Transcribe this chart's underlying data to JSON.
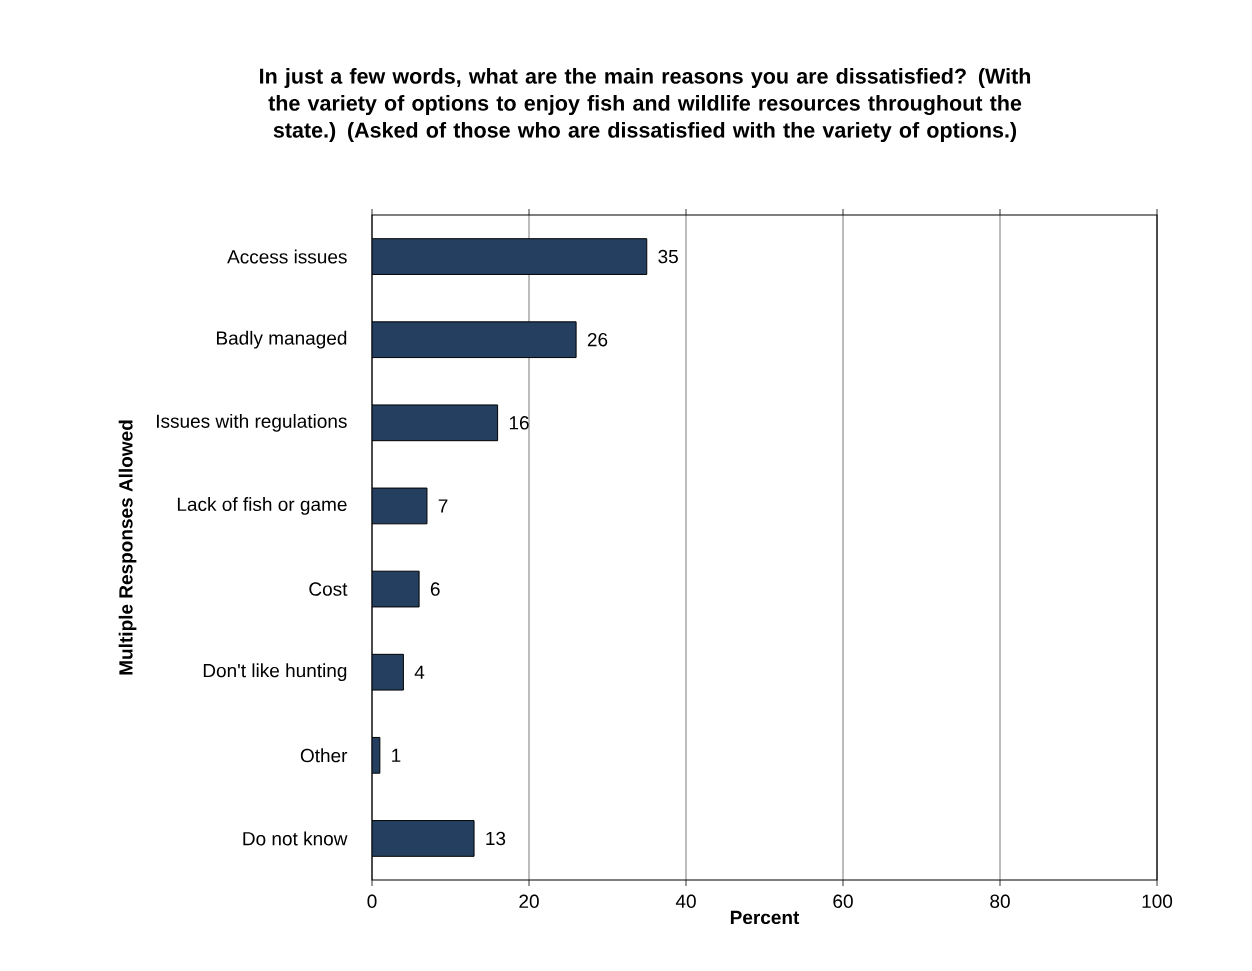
{
  "chart_data": {
    "type": "bar",
    "orientation": "horizontal",
    "title": "In just a few words, what are the main reasons you are dissatisfied? (With the variety of options to enjoy fish and wildlife resources throughout the state.) (Asked of those who are dissatisfied with the variety of options.)",
    "ylabel": "Multiple Responses Allowed",
    "xlabel": "Percent",
    "categories": [
      "Access issues",
      "Badly managed",
      "Issues with regulations",
      "Lack of fish or game",
      "Cost",
      "Don't like hunting",
      "Other",
      "Do not know"
    ],
    "values": [
      35,
      26,
      16,
      7,
      6,
      4,
      1,
      13
    ],
    "color": "#243f60",
    "data_labels": true,
    "grid": "x",
    "xlim": [
      0,
      100
    ],
    "xticks": [
      0,
      20,
      40,
      60,
      80,
      100
    ]
  }
}
